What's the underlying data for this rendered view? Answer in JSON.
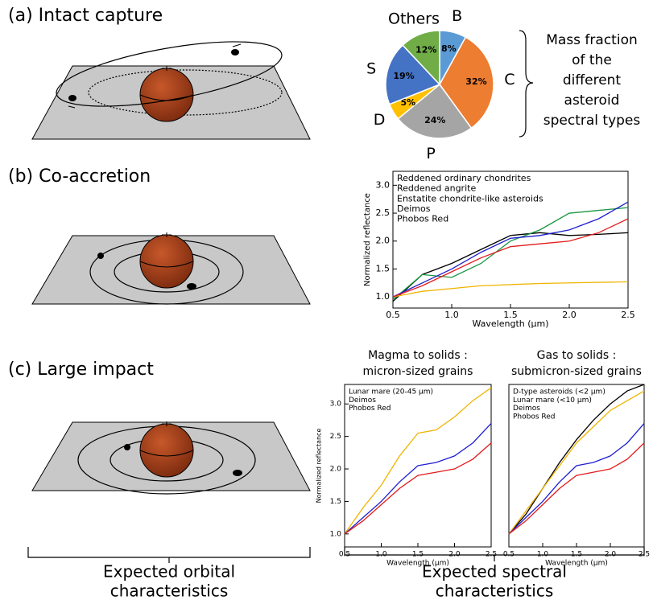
{
  "panels": [
    "(a) Intact capture",
    "(b) Co-accretion",
    "(c) Large impact"
  ],
  "pie_note": [
    "Mass fraction",
    "of the",
    "different",
    "asteroid",
    "spectral types"
  ],
  "captions": {
    "orbital": [
      "Expected orbital",
      "characteristics"
    ],
    "spectral": [
      "Expected spectral",
      "characteristics"
    ]
  },
  "chart_data": [
    {
      "type": "pie",
      "categories": [
        "B",
        "C",
        "P",
        "D",
        "S",
        "Others"
      ],
      "values": [
        8,
        32,
        24,
        5,
        19,
        12
      ],
      "value_labels": [
        "8%",
        "32%",
        "24%",
        "5%",
        "19%",
        "12%"
      ],
      "colors": [
        "#5b9bd5",
        "#ed7d31",
        "#a5a5a5",
        "#ffc000",
        "#4472c4",
        "#70ad47"
      ]
    },
    {
      "type": "line",
      "xlabel": "Wavelength (µm)",
      "ylabel": "Normalized reflectance",
      "legend": "upper left",
      "x": [
        0.5,
        0.75,
        1.0,
        1.25,
        1.5,
        1.75,
        2.0,
        2.25,
        2.5
      ],
      "xlim": [
        0.5,
        2.5
      ],
      "xticks": [
        0.5,
        {
          "value": 1,
          "label": "1.0"
        },
        1.5,
        {
          "value": 2,
          "label": "2.0"
        },
        2.5
      ],
      "ylim": [
        0.8,
        3.25
      ],
      "yticks": [
        {
          "value": 1,
          "label": "1.0"
        },
        1.5,
        {
          "value": 2,
          "label": "2.0"
        },
        2.5,
        {
          "value": 3,
          "label": "3.0"
        }
      ],
      "series": [
        {
          "name": "Reddened ordinary chondrites",
          "color": "#000000",
          "values": [
            0.92,
            1.4,
            1.6,
            1.85,
            2.1,
            2.15,
            2.1,
            2.12,
            2.15
          ]
        },
        {
          "name": "Reddened angrite",
          "color": "#1a9641",
          "values": [
            0.95,
            1.4,
            1.35,
            1.6,
            2.0,
            2.2,
            2.5,
            2.55,
            2.6
          ]
        },
        {
          "name": "Enstatite chondrite-like asteroids",
          "color": "#f0b400",
          "values": [
            1.0,
            1.1,
            1.15,
            1.2,
            1.22,
            1.24,
            1.25,
            1.26,
            1.27
          ]
        },
        {
          "name": "Deimos",
          "color": "#1f1fd0",
          "values": [
            1.0,
            1.25,
            1.5,
            1.8,
            2.05,
            2.1,
            2.2,
            2.4,
            2.7
          ]
        },
        {
          "name": "Phobos Red",
          "color": "#e41a1c",
          "values": [
            1.0,
            1.2,
            1.45,
            1.7,
            1.9,
            1.95,
            2.0,
            2.15,
            2.4
          ]
        }
      ]
    },
    {
      "type": "line",
      "title": [
        "Magma to solids :",
        "micron-sized grains"
      ],
      "xlabel": "Wavelength (µm)",
      "ylabel": "Normalized reflectance",
      "legend": "upper left",
      "x": [
        0.5,
        0.75,
        1.0,
        1.25,
        1.5,
        1.75,
        2.0,
        2.25,
        2.5
      ],
      "xlim": [
        0.5,
        2.5
      ],
      "xticks": [
        0.5,
        {
          "value": 1,
          "label": "1.0"
        },
        1.5,
        {
          "value": 2,
          "label": "2.0"
        },
        2.5
      ],
      "ylim": [
        0.8,
        3.3
      ],
      "yticks": [
        {
          "value": 1,
          "label": "1.0"
        },
        1.5,
        {
          "value": 2,
          "label": "2.0"
        },
        2.5,
        {
          "value": 3,
          "label": "3.0"
        }
      ],
      "series": [
        {
          "name": "Lunar mare (20-45 µm)",
          "color": "#f0b400",
          "values": [
            1.0,
            1.4,
            1.75,
            2.2,
            2.55,
            2.6,
            2.8,
            3.05,
            3.25
          ]
        },
        {
          "name": "Deimos",
          "color": "#1f1fd0",
          "values": [
            1.0,
            1.25,
            1.5,
            1.8,
            2.05,
            2.1,
            2.2,
            2.4,
            2.7
          ]
        },
        {
          "name": "Phobos Red",
          "color": "#e41a1c",
          "values": [
            1.0,
            1.2,
            1.45,
            1.7,
            1.9,
            1.95,
            2.0,
            2.15,
            2.4
          ]
        }
      ]
    },
    {
      "type": "line",
      "title": [
        "Gas to solids :",
        "submicron-sized grains"
      ],
      "xlabel": "Wavelength (µm)",
      "legend": "upper left",
      "x": [
        0.5,
        0.75,
        1.0,
        1.25,
        1.5,
        1.75,
        2.0,
        2.25,
        2.5
      ],
      "xlim": [
        0.5,
        2.5
      ],
      "xticks": [
        0.5,
        {
          "value": 1,
          "label": "1.0"
        },
        1.5,
        {
          "value": 2,
          "label": "2.0"
        },
        2.5
      ],
      "ylim": [
        0.8,
        3.3
      ],
      "series": [
        {
          "name": "D-type asteroids (<2 µm)",
          "color": "#000000",
          "values": [
            1.0,
            1.3,
            1.7,
            2.1,
            2.45,
            2.75,
            3.0,
            3.2,
            3.3
          ]
        },
        {
          "name": "Lunar mare (<10 µm)",
          "color": "#f0b400",
          "values": [
            1.0,
            1.35,
            1.7,
            2.05,
            2.4,
            2.65,
            2.9,
            3.05,
            3.2
          ]
        },
        {
          "name": "Deimos",
          "color": "#1f1fd0",
          "values": [
            1.0,
            1.25,
            1.5,
            1.8,
            2.05,
            2.1,
            2.2,
            2.4,
            2.7
          ]
        },
        {
          "name": "Phobos Red",
          "color": "#e41a1c",
          "values": [
            1.0,
            1.2,
            1.45,
            1.7,
            1.9,
            1.95,
            2.0,
            2.15,
            2.4
          ]
        }
      ]
    }
  ]
}
